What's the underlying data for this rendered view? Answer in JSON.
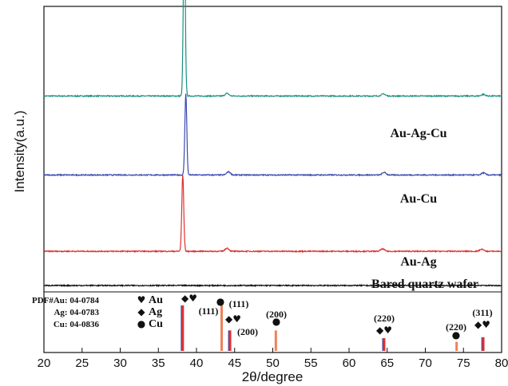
{
  "chart_data": {
    "type": "line",
    "xlabel": "2θ/degree",
    "ylabel": "Intensity(a.u.)",
    "xlim": [
      20,
      80
    ],
    "xticks": [
      20,
      25,
      30,
      35,
      40,
      45,
      50,
      55,
      60,
      65,
      70,
      75,
      80
    ],
    "grid": false,
    "series": [
      {
        "name": "Au-Ag-Cu",
        "color": "#1a9080",
        "baseline": 0.72,
        "peaks": [
          {
            "x": 38.4,
            "height": 0.65
          },
          {
            "x": 44.0,
            "height": 0.01
          },
          {
            "x": 64.5,
            "height": 0.008
          },
          {
            "x": 77.6,
            "height": 0.006
          }
        ]
      },
      {
        "name": "Au-Cu",
        "color": "#3a4ab0",
        "baseline": 0.42,
        "peaks": [
          {
            "x": 38.6,
            "height": 0.31
          },
          {
            "x": 44.2,
            "height": 0.012
          },
          {
            "x": 64.6,
            "height": 0.01
          },
          {
            "x": 77.6,
            "height": 0.008
          }
        ]
      },
      {
        "name": "Au-Ag",
        "color": "#e03030",
        "baseline": 0.13,
        "peaks": [
          {
            "x": 38.2,
            "height": 0.29
          },
          {
            "x": 44.0,
            "height": 0.012
          },
          {
            "x": 64.4,
            "height": 0.009
          },
          {
            "x": 77.4,
            "height": 0.008
          }
        ]
      },
      {
        "name": "Bared quartz wafer",
        "color": "#111111",
        "baseline": 0.0,
        "peaks": []
      }
    ],
    "reference": {
      "legend": [
        {
          "pdf": "PDF#Au:  04-0784",
          "symbol": "♥",
          "label": "Au"
        },
        {
          "pdf": "Ag:  04-0783",
          "symbol": "◆",
          "label": "Ag"
        },
        {
          "pdf": "Cu:  04-0836",
          "symbol": "●",
          "label": "Cu"
        }
      ],
      "lines": [
        {
          "x": 38.1,
          "height": 1.0,
          "color": "#3a4ab0"
        },
        {
          "x": 38.2,
          "height": 1.0,
          "color": "#e03030"
        },
        {
          "x": 43.3,
          "height": 1.0,
          "color": "#f0805a"
        },
        {
          "x": 44.3,
          "height": 0.45,
          "color": "#3a4ab0"
        },
        {
          "x": 44.4,
          "height": 0.45,
          "color": "#e03030"
        },
        {
          "x": 50.4,
          "height": 0.45,
          "color": "#f0805a"
        },
        {
          "x": 64.5,
          "height": 0.28,
          "color": "#3a4ab0"
        },
        {
          "x": 64.6,
          "height": 0.28,
          "color": "#e03030"
        },
        {
          "x": 74.1,
          "height": 0.2,
          "color": "#f0805a"
        },
        {
          "x": 77.5,
          "height": 0.3,
          "color": "#3a4ab0"
        },
        {
          "x": 77.6,
          "height": 0.3,
          "color": "#e03030"
        }
      ],
      "annotations": [
        {
          "x": 38.1,
          "symbols": "◆♥",
          "hkl": "(111)"
        },
        {
          "x": 43.3,
          "symbols": "●",
          "hkl": "(111)"
        },
        {
          "x": 44.4,
          "symbols": "◆♥",
          "hkl": "(200)"
        },
        {
          "x": 50.4,
          "symbols": "●",
          "hkl": "(200)"
        },
        {
          "x": 64.5,
          "symbols": "◆♥",
          "hkl": "(220)"
        },
        {
          "x": 74.1,
          "symbols": "●",
          "hkl": "(220)"
        },
        {
          "x": 77.5,
          "symbols": "◆♥",
          "hkl": "(311)"
        }
      ]
    }
  }
}
